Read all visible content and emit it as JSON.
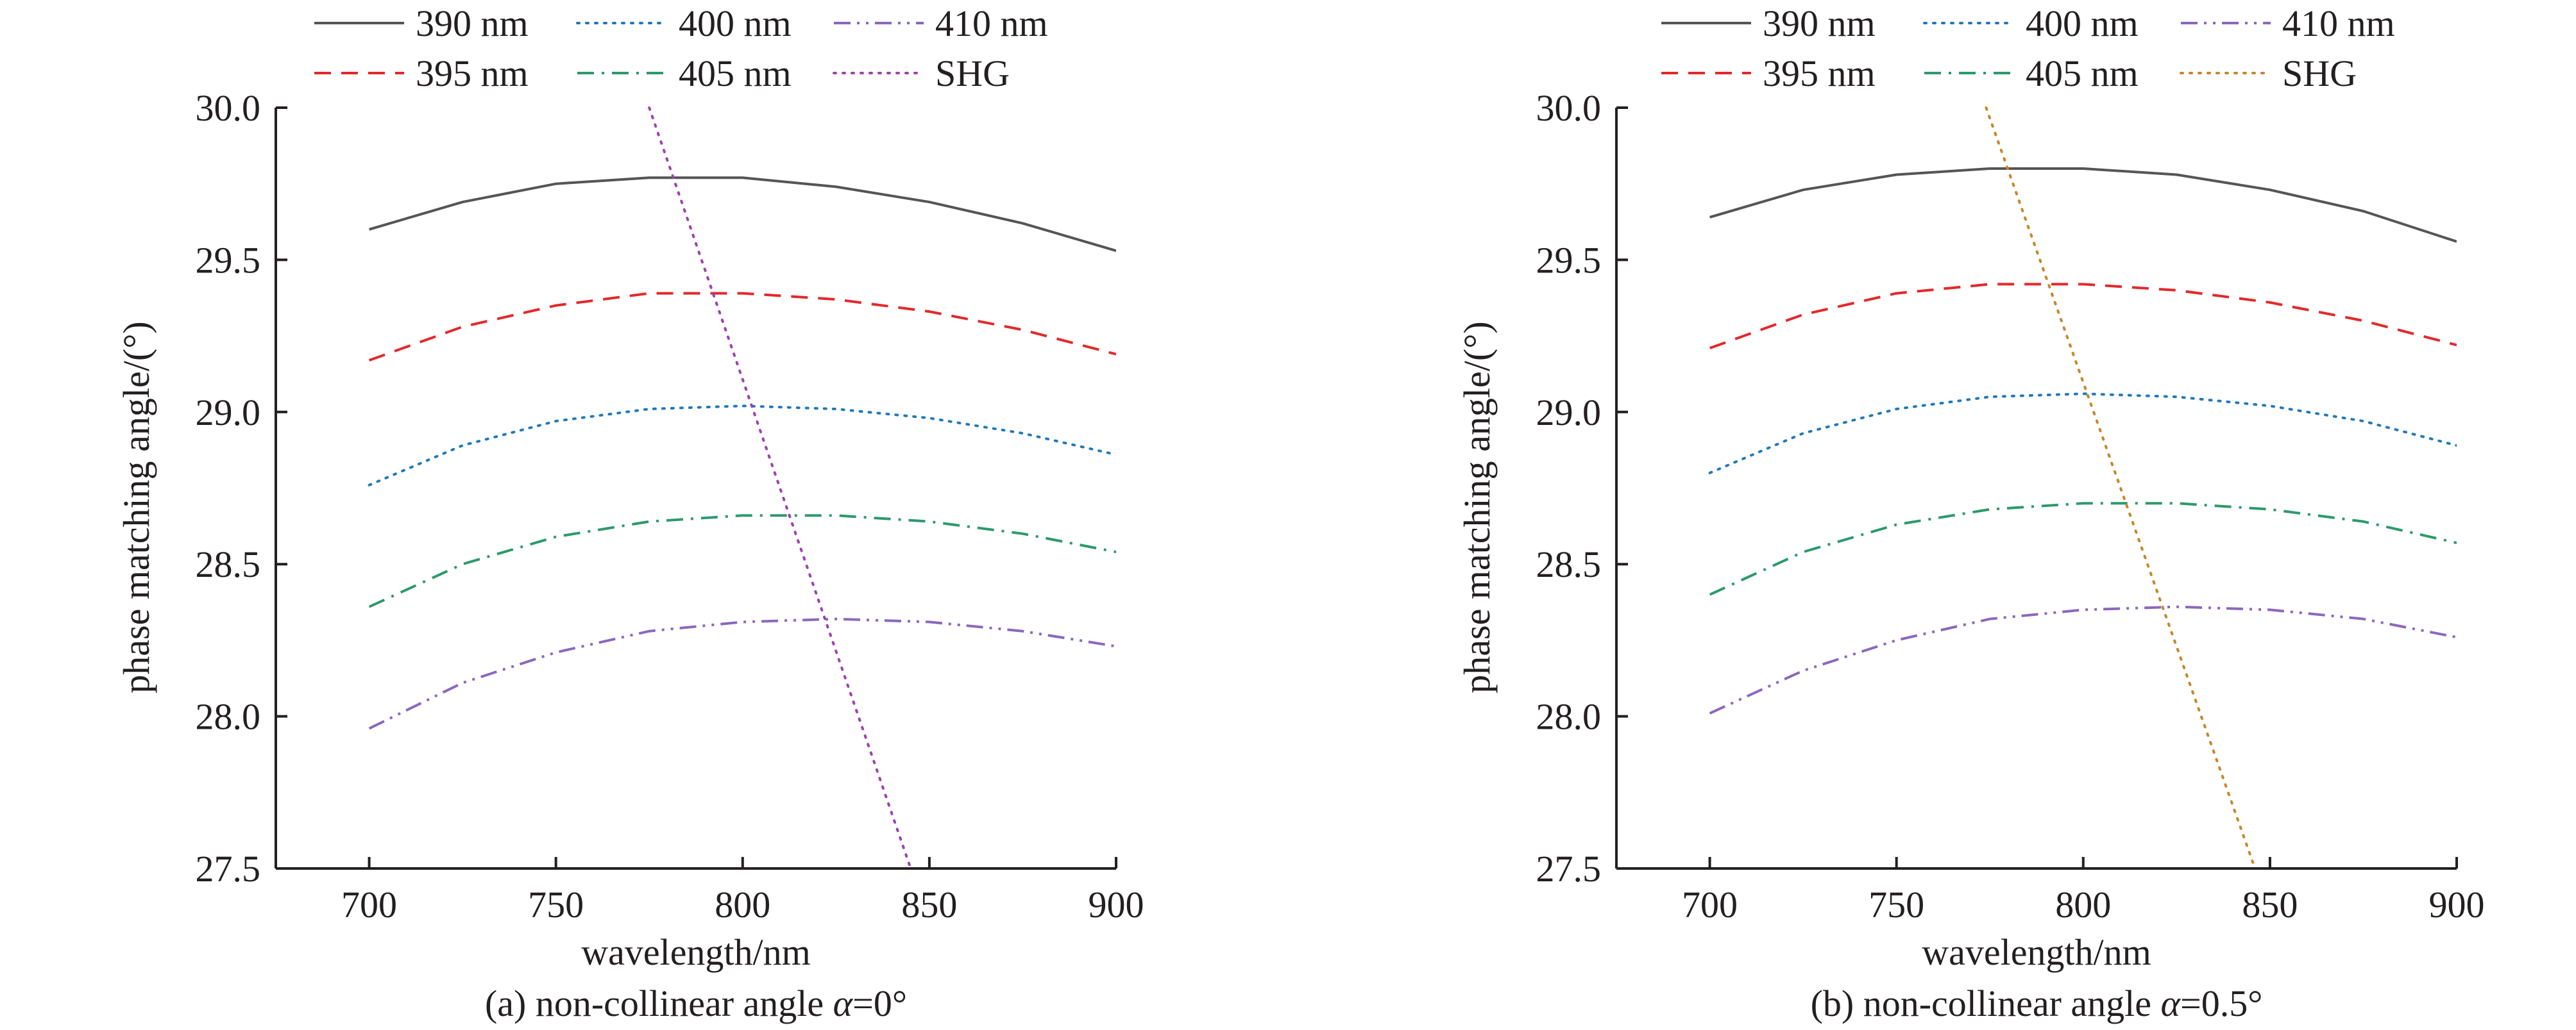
{
  "chart_data": [
    {
      "type": "line",
      "caption_prefix": "(a) non-collinear angle ",
      "caption_symbol": "α",
      "caption_suffix": "=0°",
      "xlabel": "wavelength/nm",
      "ylabel": "phase matching angle/(°)",
      "xlim": [
        675,
        900
      ],
      "ylim": [
        27.5,
        30.0
      ],
      "xticks": [
        700,
        750,
        800,
        850,
        900
      ],
      "xtick_labels": [
        "700",
        "750",
        "800",
        "850",
        "900"
      ],
      "yticks": [
        27.5,
        28.0,
        28.5,
        29.0,
        29.5,
        30.0
      ],
      "ytick_labels": [
        "27.5",
        "28.0",
        "28.5",
        "29.0",
        "29.5",
        "30.0"
      ],
      "legend_position": "top",
      "series": [
        {
          "name": "390 nm",
          "color": "#555555",
          "dash": "solid",
          "x": [
            700,
            725,
            750,
            775,
            800,
            825,
            850,
            875,
            900
          ],
          "y": [
            29.6,
            29.69,
            29.75,
            29.77,
            29.77,
            29.74,
            29.69,
            29.62,
            29.53
          ]
        },
        {
          "name": "395 nm",
          "color": "#e3282b",
          "dash": "dashed",
          "x": [
            700,
            725,
            750,
            775,
            800,
            825,
            850,
            875,
            900
          ],
          "y": [
            29.17,
            29.28,
            29.35,
            29.39,
            29.39,
            29.37,
            29.33,
            29.27,
            29.19
          ]
        },
        {
          "name": "400 nm",
          "color": "#1f79b8",
          "dash": "dotted",
          "x": [
            700,
            725,
            750,
            775,
            800,
            825,
            850,
            875,
            900
          ],
          "y": [
            28.76,
            28.89,
            28.97,
            29.01,
            29.02,
            29.01,
            28.98,
            28.93,
            28.86
          ]
        },
        {
          "name": "405 nm",
          "color": "#2b9a6a",
          "dash": "dashdot",
          "x": [
            700,
            725,
            750,
            775,
            800,
            825,
            850,
            875,
            900
          ],
          "y": [
            28.36,
            28.5,
            28.59,
            28.64,
            28.66,
            28.66,
            28.64,
            28.6,
            28.54
          ]
        },
        {
          "name": "410 nm",
          "color": "#8a68bd",
          "dash": "dashdotdot",
          "x": [
            700,
            725,
            750,
            775,
            800,
            825,
            850,
            875,
            900
          ],
          "y": [
            27.96,
            28.11,
            28.21,
            28.28,
            28.31,
            28.32,
            28.31,
            28.28,
            28.23
          ]
        },
        {
          "name": "SHG",
          "color": "#a040b0",
          "dash": "dotted",
          "x": [
            775,
            845
          ],
          "y": [
            30.0,
            27.5
          ]
        }
      ]
    },
    {
      "type": "line",
      "caption_prefix": "(b) non-collinear angle ",
      "caption_symbol": "α",
      "caption_suffix": "=0.5°",
      "xlabel": "wavelength/nm",
      "ylabel": "phase matching angle/(°)",
      "xlim": [
        675,
        900
      ],
      "ylim": [
        27.5,
        30.0
      ],
      "xticks": [
        700,
        750,
        800,
        850,
        900
      ],
      "xtick_labels": [
        "700",
        "750",
        "800",
        "850",
        "900"
      ],
      "yticks": [
        27.5,
        28.0,
        28.5,
        29.0,
        29.5,
        30.0
      ],
      "ytick_labels": [
        "27.5",
        "28.0",
        "28.5",
        "29.0",
        "29.5",
        "30.0"
      ],
      "legend_position": "top",
      "series": [
        {
          "name": "390 nm",
          "color": "#555555",
          "dash": "solid",
          "x": [
            700,
            725,
            750,
            775,
            800,
            825,
            850,
            875,
            900
          ],
          "y": [
            29.64,
            29.73,
            29.78,
            29.8,
            29.8,
            29.78,
            29.73,
            29.66,
            29.56
          ]
        },
        {
          "name": "395 nm",
          "color": "#e3282b",
          "dash": "dashed",
          "x": [
            700,
            725,
            750,
            775,
            800,
            825,
            850,
            875,
            900
          ],
          "y": [
            29.21,
            29.32,
            29.39,
            29.42,
            29.42,
            29.4,
            29.36,
            29.3,
            29.22
          ]
        },
        {
          "name": "400 nm",
          "color": "#1f79b8",
          "dash": "dotted",
          "x": [
            700,
            725,
            750,
            775,
            800,
            825,
            850,
            875,
            900
          ],
          "y": [
            28.8,
            28.93,
            29.01,
            29.05,
            29.06,
            29.05,
            29.02,
            28.97,
            28.89
          ]
        },
        {
          "name": "405 nm",
          "color": "#2b9a6a",
          "dash": "dashdot",
          "x": [
            700,
            725,
            750,
            775,
            800,
            825,
            850,
            875,
            900
          ],
          "y": [
            28.4,
            28.54,
            28.63,
            28.68,
            28.7,
            28.7,
            28.68,
            28.64,
            28.57
          ]
        },
        {
          "name": "410 nm",
          "color": "#8a68bd",
          "dash": "dashdotdot",
          "x": [
            700,
            725,
            750,
            775,
            800,
            825,
            850,
            875,
            900
          ],
          "y": [
            28.01,
            28.15,
            28.25,
            28.32,
            28.35,
            28.36,
            28.35,
            28.32,
            28.26
          ]
        },
        {
          "name": "SHG",
          "color": "#c8862a",
          "dash": "dotted",
          "x": [
            774,
            846
          ],
          "y": [
            30.0,
            27.5
          ]
        }
      ]
    }
  ]
}
